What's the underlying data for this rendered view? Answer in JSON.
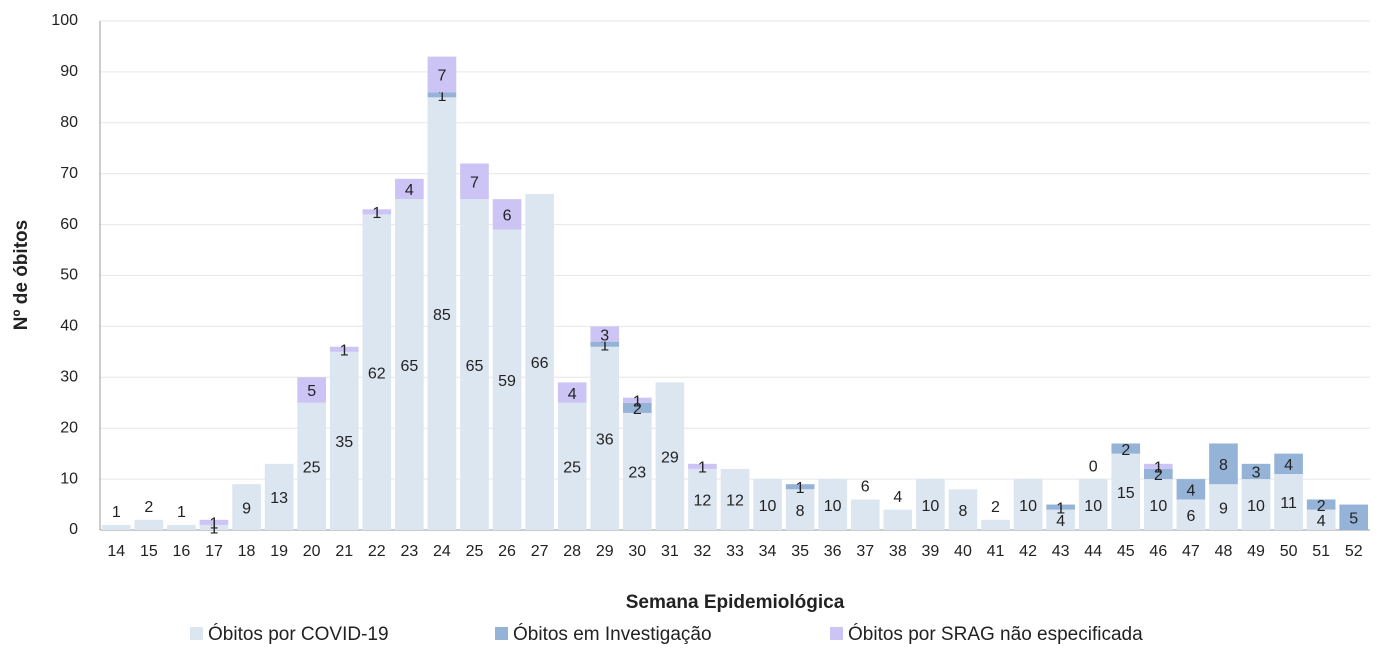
{
  "chart_data": {
    "type": "stacked-bar",
    "x_label": "Semana Epidemiológica",
    "y_label": "Nº de óbitos",
    "categories": [
      "14",
      "15",
      "16",
      "17",
      "18",
      "19",
      "20",
      "21",
      "22",
      "23",
      "24",
      "25",
      "26",
      "27",
      "28",
      "29",
      "30",
      "31",
      "32",
      "33",
      "34",
      "35",
      "36",
      "37",
      "38",
      "39",
      "40",
      "41",
      "42",
      "43",
      "44",
      "45",
      "46",
      "47",
      "48",
      "49",
      "50",
      "51",
      "52"
    ],
    "series": [
      {
        "name": "Óbitos por COVID-19",
        "color": "#dce6f1",
        "values": [
          1,
          2,
          1,
          1,
          9,
          13,
          25,
          35,
          62,
          65,
          85,
          65,
          59,
          66,
          25,
          36,
          23,
          29,
          12,
          12,
          10,
          8,
          10,
          6,
          4,
          10,
          8,
          2,
          10,
          4,
          10,
          15,
          10,
          6,
          9,
          10,
          11,
          4,
          null
        ]
      },
      {
        "name": "Óbitos em Investigação",
        "color": "#95b3d7",
        "values": [
          null,
          null,
          null,
          null,
          null,
          null,
          null,
          null,
          null,
          null,
          1,
          null,
          null,
          null,
          null,
          1,
          2,
          null,
          null,
          null,
          null,
          1,
          null,
          null,
          null,
          null,
          null,
          null,
          null,
          1,
          0,
          2,
          2,
          4,
          8,
          3,
          4,
          2,
          5
        ]
      },
      {
        "name": "Óbitos por SRAG não especificada",
        "color": "#ccc4f5",
        "values": [
          null,
          null,
          null,
          1,
          null,
          null,
          5,
          1,
          1,
          4,
          7,
          7,
          6,
          null,
          4,
          3,
          1,
          null,
          1,
          null,
          null,
          null,
          null,
          null,
          null,
          null,
          null,
          null,
          null,
          null,
          null,
          null,
          1,
          null,
          null,
          null,
          null,
          null,
          null
        ]
      }
    ],
    "ylim": [
      0,
      100
    ],
    "yticks": [
      0,
      10,
      20,
      30,
      40,
      50,
      60,
      70,
      80,
      90,
      100
    ],
    "grid": true,
    "legend": "bottom"
  }
}
